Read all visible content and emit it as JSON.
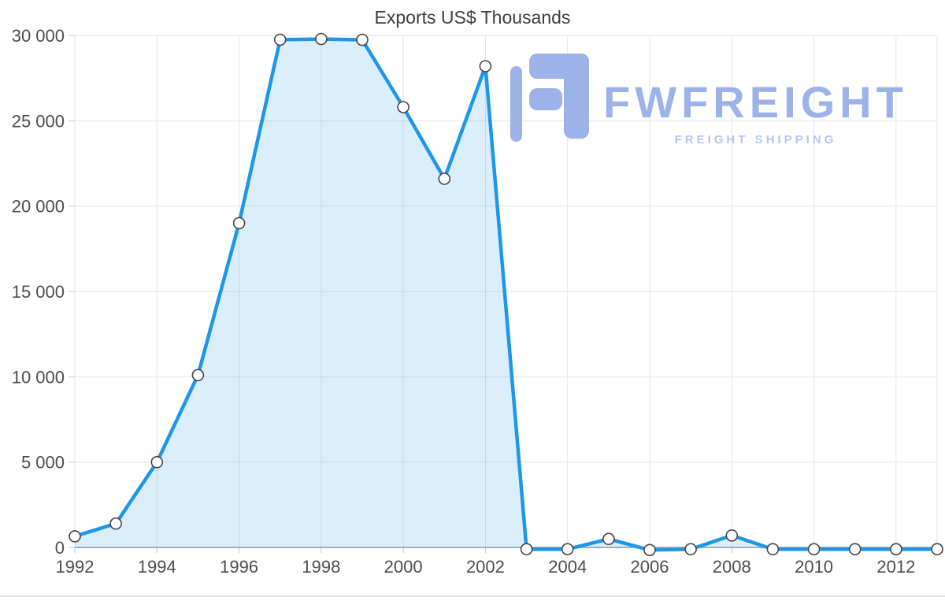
{
  "chart_data": {
    "type": "area",
    "title": "Exports US$ Thousands",
    "xlabel": "",
    "ylabel": "",
    "x": [
      1992,
      1993,
      1994,
      1995,
      1996,
      1997,
      1998,
      1999,
      2000,
      2001,
      2002,
      2003,
      2004,
      2005,
      2006,
      2007,
      2008,
      2009,
      2010,
      2011,
      2012,
      2013
    ],
    "series": [
      {
        "name": "Exports US$ Thousands",
        "values": [
          650,
          1400,
          5000,
          10100,
          19000,
          29750,
          29790,
          29740,
          25800,
          21600,
          28200,
          -100,
          -100,
          500,
          -150,
          -100,
          700,
          -100,
          -100,
          -100,
          -100,
          -100
        ]
      }
    ],
    "ylim": [
      0,
      30000
    ],
    "x_range": [
      1992,
      2013
    ],
    "yticks": [
      0,
      5000,
      10000,
      15000,
      20000,
      25000,
      30000
    ],
    "ytick_labels": [
      "0",
      "5 000",
      "10 000",
      "15 000",
      "20 000",
      "25 000",
      "30 000"
    ],
    "xticks": [
      1992,
      1994,
      1996,
      1998,
      2000,
      2002,
      2004,
      2006,
      2008,
      2010,
      2012
    ],
    "grid": true,
    "legend_position": "none",
    "line_color": "#1e97ea",
    "fill_color": "rgba(30, 151, 234, 0.16)",
    "grid_color": "#e5e5e5",
    "axis_line_color": "#b2b2b2",
    "tick_label_color": "#4e4e4e",
    "marker": {
      "fill": "#ffffff",
      "stroke": "#474747"
    }
  },
  "watermark": {
    "brand": "FWFREIGHT",
    "tagline": "FREIGHT SHIPPING",
    "color": "#9db2e9",
    "tagline_color": "#b3c4f0"
  }
}
